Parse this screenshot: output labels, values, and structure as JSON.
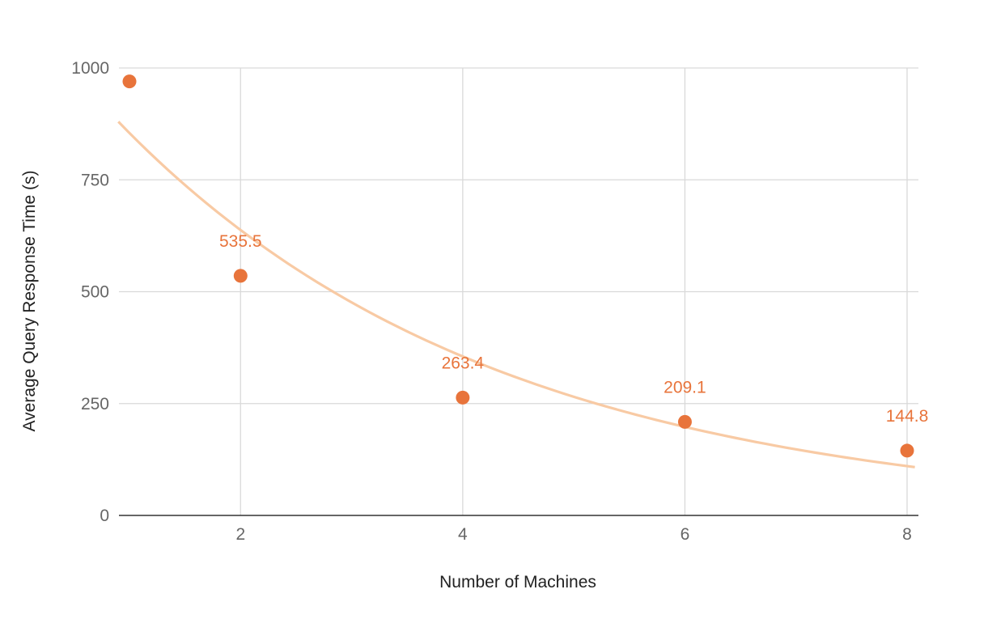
{
  "chart_data": {
    "type": "scatter",
    "xlabel": "Number of Machines",
    "ylabel": "Average Query Response Time (s)",
    "xlim": [
      1,
      8.1
    ],
    "ylim": [
      0,
      1000
    ],
    "x_ticks": [
      2,
      4,
      6,
      8
    ],
    "y_ticks": [
      0,
      250,
      500,
      750,
      1000
    ],
    "grid": true,
    "legend": "none",
    "series": [
      {
        "x": [
          1,
          2,
          4,
          6,
          8
        ],
        "y": [
          970,
          535.5,
          263.4,
          209.1,
          144.8
        ],
        "data_labels": [
          "",
          "535.5",
          "263.4",
          "209.1",
          "144.8"
        ]
      }
    ],
    "trendline": {
      "type": "exponential",
      "x_start": 0.9,
      "x_end": 8.07,
      "y_at_x_start": 880,
      "y_at_x_end": 108
    },
    "colors": {
      "points": "#e8743b",
      "labels": "#e8743b",
      "trendline": "#f8caa4",
      "grid": "#d9d9d9",
      "baseline": "#333333",
      "tick_text": "#666666",
      "axis_title": "#222222"
    }
  }
}
